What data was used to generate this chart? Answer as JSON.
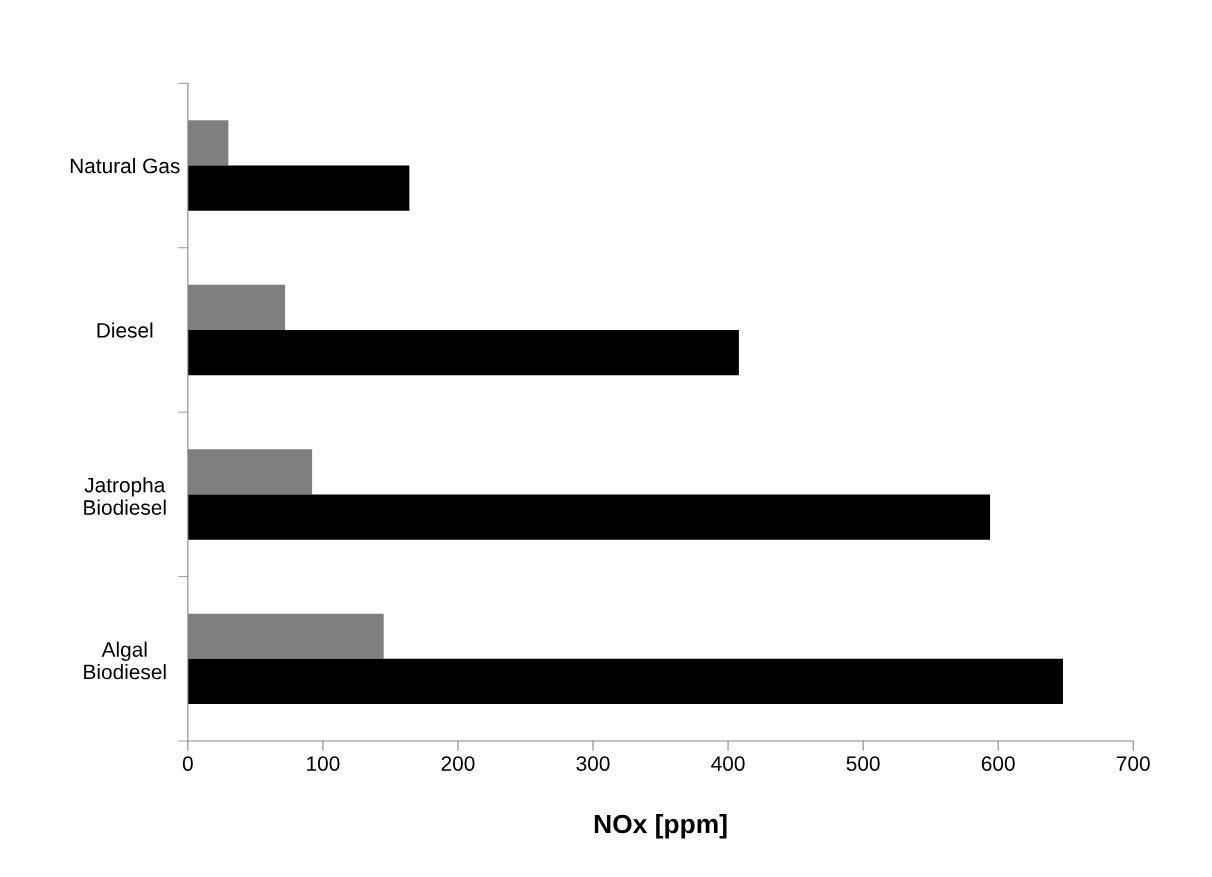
{
  "chart_data": {
    "type": "bar",
    "orientation": "horizontal",
    "xlabel": "NOx [ppm]",
    "categories": [
      "Natural Gas",
      "Diesel",
      "Jatropha\nBiodiesel",
      "Algal\nBiodiesel"
    ],
    "series": [
      {
        "color": "#7f7f7f",
        "values": [
          30,
          72,
          92,
          145
        ]
      },
      {
        "color": "#000000",
        "values": [
          164,
          408,
          594,
          648
        ]
      }
    ],
    "xlim": [
      0,
      700
    ],
    "xticks": [
      0,
      100,
      200,
      300,
      400,
      500,
      600,
      700
    ],
    "grid": false
  }
}
